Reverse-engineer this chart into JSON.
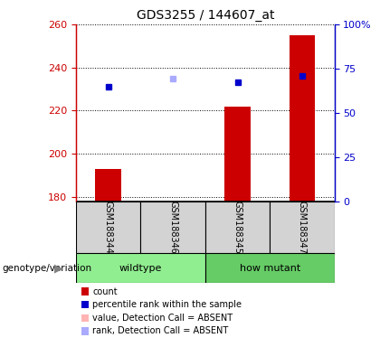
{
  "title": "GDS3255 / 144607_at",
  "samples": [
    "GSM188344",
    "GSM188346",
    "GSM188345",
    "GSM188347"
  ],
  "ylim_left": [
    178,
    260
  ],
  "ylim_right": [
    0,
    100
  ],
  "yticks_left": [
    180,
    200,
    220,
    240,
    260
  ],
  "yticks_right": [
    0,
    25,
    50,
    75,
    100
  ],
  "ytick_labels_right": [
    "0",
    "25",
    "50",
    "75",
    "100%"
  ],
  "bar_bottom": 178,
  "red_bar_values": [
    193,
    178,
    222,
    255
  ],
  "red_bar_absent": [
    false,
    true,
    false,
    false
  ],
  "blue_square_values": [
    231,
    235,
    233,
    236
  ],
  "blue_square_absent": [
    false,
    true,
    false,
    false
  ],
  "bar_width": 0.4,
  "bar_color_present": "#cc0000",
  "bar_color_absent": "#ffb3b3",
  "square_color_present": "#0000cc",
  "square_color_absent": "#aaaaff",
  "left_axis_color": "#cc0000",
  "right_axis_color": "#0000cc",
  "sample_bg": "#d3d3d3",
  "group_ranges": [
    [
      0,
      1
    ],
    [
      2,
      3
    ]
  ],
  "group_labels": [
    "wildtype",
    "how mutant"
  ],
  "group_colors": [
    "#90ee90",
    "#66cc66"
  ],
  "legend_items": [
    {
      "color": "#cc0000",
      "label": "count"
    },
    {
      "color": "#0000cc",
      "label": "percentile rank within the sample"
    },
    {
      "color": "#ffb3b3",
      "label": "value, Detection Call = ABSENT"
    },
    {
      "color": "#aaaaff",
      "label": "rank, Detection Call = ABSENT"
    }
  ],
  "xlabel_text": "genotype/variation"
}
